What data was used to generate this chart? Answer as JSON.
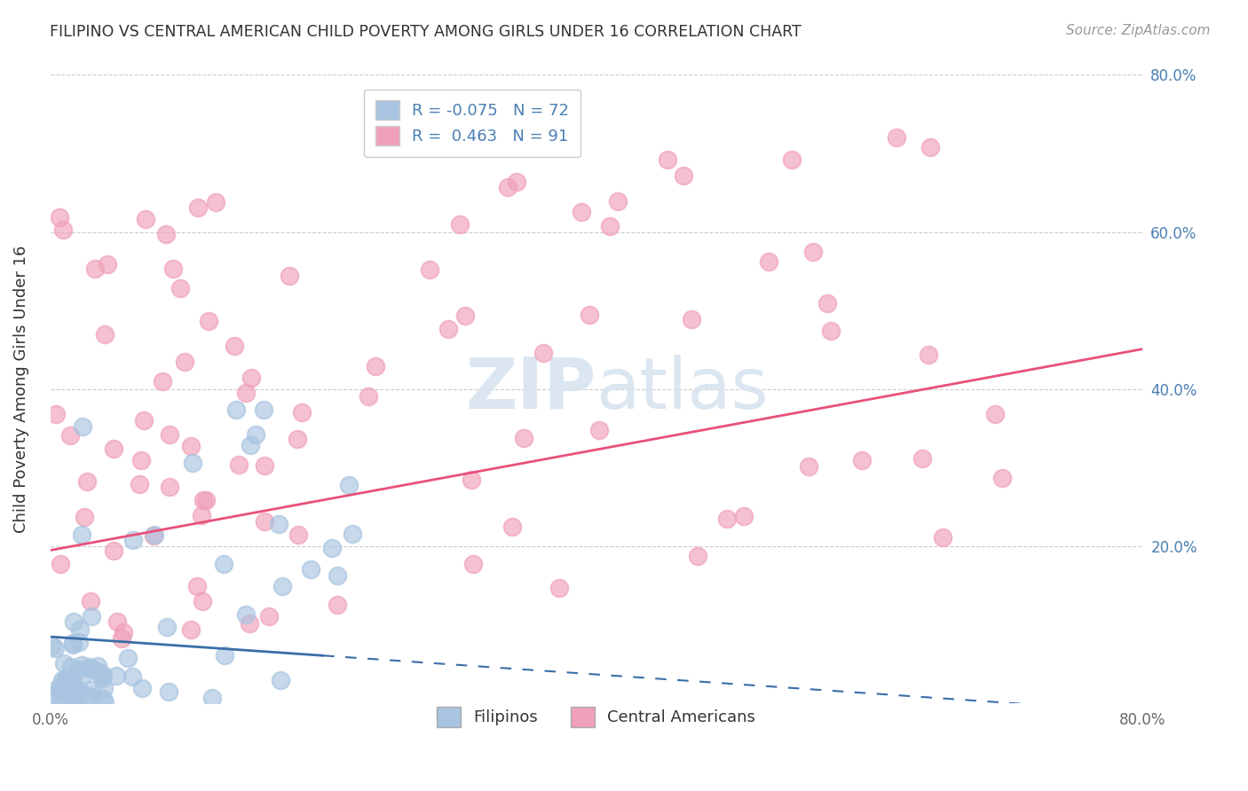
{
  "title": "FILIPINO VS CENTRAL AMERICAN CHILD POVERTY AMONG GIRLS UNDER 16 CORRELATION CHART",
  "source": "Source: ZipAtlas.com",
  "ylabel": "Child Poverty Among Girls Under 16",
  "xlim": [
    0.0,
    0.8
  ],
  "ylim": [
    0.0,
    0.8
  ],
  "r_filipino": -0.075,
  "n_filipino": 72,
  "r_central": 0.463,
  "n_central": 91,
  "filipino_color": "#a8c4e0",
  "central_color": "#f0a0b8",
  "filipino_line_color": "#3a6ea8",
  "central_line_color": "#e8507a",
  "watermark_color": "#d8e4f0",
  "background_color": "#ffffff",
  "grid_color": "#cccccc",
  "ytick_color": "#4a7fb5",
  "title_color": "#333333",
  "source_color": "#999999",
  "legend_text_color": "#4a7fb5",
  "bottom_legend_color": "#333333",
  "fil_intercept": 0.085,
  "fil_slope": -0.12,
  "cen_intercept": 0.195,
  "cen_slope": 0.32
}
